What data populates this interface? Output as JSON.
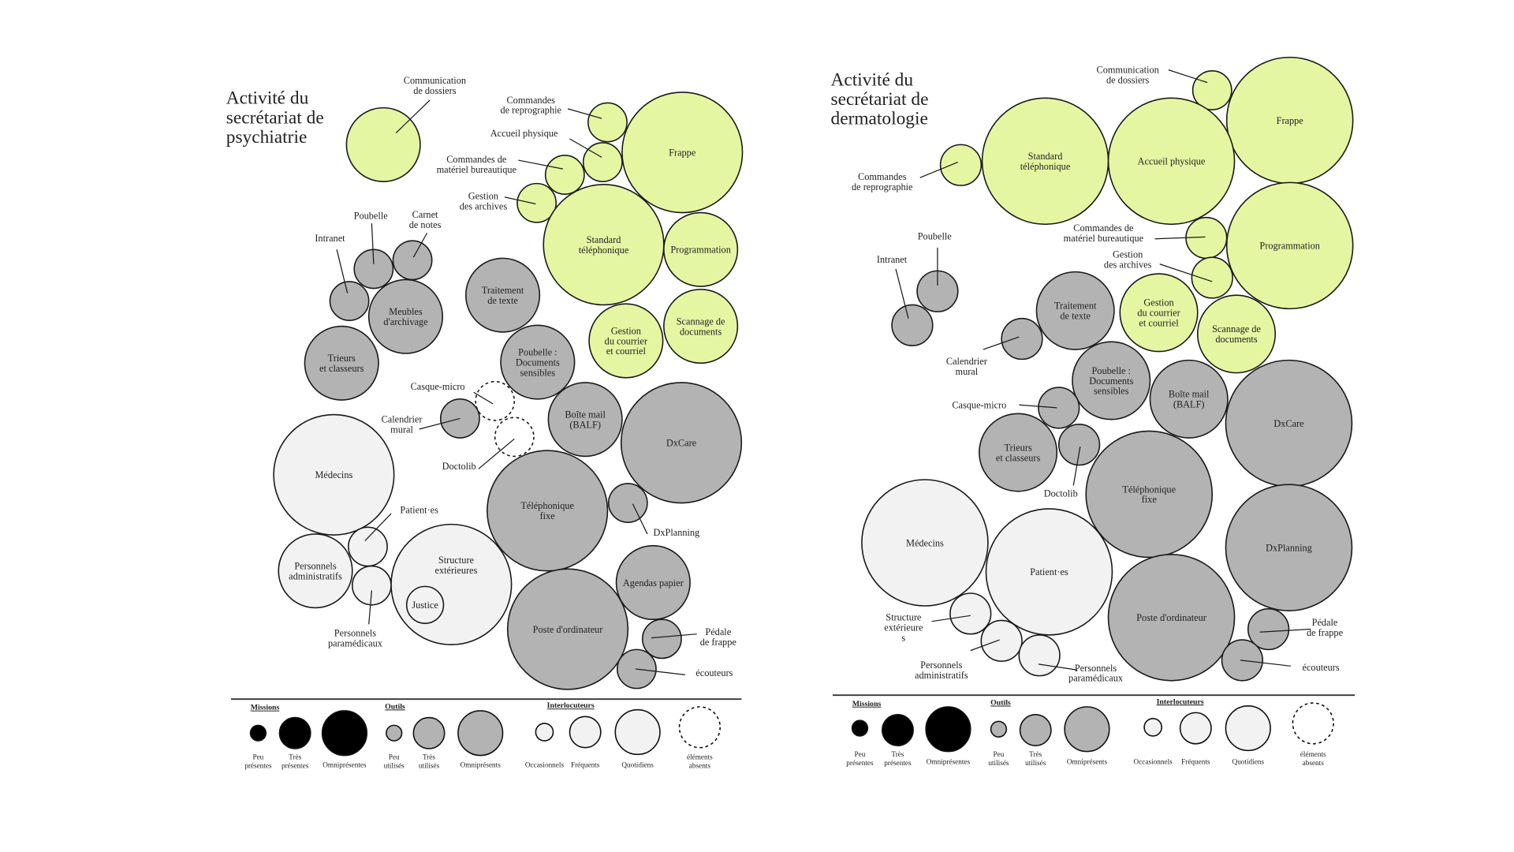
{
  "colors": {
    "mission": "#e4f6a2",
    "tool": "#b3b3b3",
    "interlocutor": "#f2f2f2",
    "stroke": "#1a1a1a"
  },
  "charts": [
    {
      "title": [
        "Activité du",
        "secrétariat de",
        "psychiatrie"
      ],
      "bubbles": [
        {
          "label": [
            "Communication",
            "de dossiers"
          ],
          "category": "mission",
          "level": "high"
        },
        {
          "label": [
            "Commandes",
            "de reprographie"
          ],
          "category": "mission",
          "level": "low"
        },
        {
          "label": [
            "Accueil physique"
          ],
          "category": "mission",
          "level": "low"
        },
        {
          "label": [
            "Commandes de",
            "matériel bureautique"
          ],
          "category": "mission",
          "level": "low"
        },
        {
          "label": [
            "Gestion",
            "des archives"
          ],
          "category": "mission",
          "level": "low"
        },
        {
          "label": [
            "Frappe"
          ],
          "category": "mission",
          "level": "omni"
        },
        {
          "label": [
            "Standard",
            "téléphonique"
          ],
          "category": "mission",
          "level": "omni"
        },
        {
          "label": [
            "Programmation"
          ],
          "category": "mission",
          "level": "high"
        },
        {
          "label": [
            "Gestion",
            "du courrier",
            "et courriel"
          ],
          "category": "mission",
          "level": "high"
        },
        {
          "label": [
            "Scannage de",
            "documents"
          ],
          "category": "mission",
          "level": "high"
        },
        {
          "label": [
            "Intranet"
          ],
          "category": "tool",
          "level": "low"
        },
        {
          "label": [
            "Poubelle"
          ],
          "category": "tool",
          "level": "low"
        },
        {
          "label": [
            "Carnet",
            "de notes"
          ],
          "category": "tool",
          "level": "low"
        },
        {
          "label": [
            "Meubles",
            "d'archivage"
          ],
          "category": "tool",
          "level": "high"
        },
        {
          "label": [
            "Trieurs",
            "et classeurs"
          ],
          "category": "tool",
          "level": "high"
        },
        {
          "label": [
            "Traitement",
            "de texte"
          ],
          "category": "tool",
          "level": "high"
        },
        {
          "label": [
            "Poubelle :",
            "Documents",
            "sensibles"
          ],
          "category": "tool",
          "level": "high"
        },
        {
          "label": [
            "Casque-micro"
          ],
          "category": "tool",
          "level": "low",
          "absent": true
        },
        {
          "label": [
            "Calendrier",
            "mural"
          ],
          "category": "tool",
          "level": "low"
        },
        {
          "label": [
            "Doctolib"
          ],
          "category": "tool",
          "level": "low",
          "absent": true
        },
        {
          "label": [
            "Boîte mail",
            "(BALF)"
          ],
          "category": "tool",
          "level": "high"
        },
        {
          "label": [
            "DxCare"
          ],
          "category": "tool",
          "level": "omni"
        },
        {
          "label": [
            "Téléphonique",
            "fixe"
          ],
          "category": "tool",
          "level": "omni"
        },
        {
          "label": [
            "DxPlanning"
          ],
          "category": "tool",
          "level": "low"
        },
        {
          "label": [
            "Agendas papier"
          ],
          "category": "tool",
          "level": "high"
        },
        {
          "label": [
            "Poste d'ordinateur"
          ],
          "category": "tool",
          "level": "omni"
        },
        {
          "label": [
            "Pédale",
            "de frappe"
          ],
          "category": "tool",
          "level": "low"
        },
        {
          "label": [
            "écouteurs"
          ],
          "category": "tool",
          "level": "low"
        },
        {
          "label": [
            "Médecins"
          ],
          "category": "interlocutor",
          "level": "omni"
        },
        {
          "label": [
            "Patient·es"
          ],
          "category": "interlocutor",
          "level": "low"
        },
        {
          "label": [
            "Personnels",
            "administratifs"
          ],
          "category": "interlocutor",
          "level": "high"
        },
        {
          "label": [
            "Personnels",
            "paramédicaux"
          ],
          "category": "interlocutor",
          "level": "low"
        },
        {
          "label": [
            "Structure",
            "extérieures"
          ],
          "category": "interlocutor",
          "level": "omni"
        },
        {
          "label": [
            "Justice"
          ],
          "category": "interlocutor",
          "level": "low"
        }
      ]
    },
    {
      "title": [
        "Activité du",
        "secrétariat de",
        "dermatologie"
      ],
      "bubbles": [
        {
          "label": [
            "Communication",
            "de dossiers"
          ],
          "category": "mission",
          "level": "low"
        },
        {
          "label": [
            "Frappe"
          ],
          "category": "mission",
          "level": "omni"
        },
        {
          "label": [
            "Standard",
            "téléphonique"
          ],
          "category": "mission",
          "level": "omni"
        },
        {
          "label": [
            "Accueil physique"
          ],
          "category": "mission",
          "level": "omni"
        },
        {
          "label": [
            "Commandes",
            "de reprographie"
          ],
          "category": "mission",
          "level": "low"
        },
        {
          "label": [
            "Programmation"
          ],
          "category": "mission",
          "level": "omni"
        },
        {
          "label": [
            "Commandes de",
            "matériel bureautique"
          ],
          "category": "mission",
          "level": "low"
        },
        {
          "label": [
            "Gestion",
            "des archives"
          ],
          "category": "mission",
          "level": "low"
        },
        {
          "label": [
            "Gestion",
            "du courrier",
            "et courriel"
          ],
          "category": "mission",
          "level": "high"
        },
        {
          "label": [
            "Scannage de",
            "documents"
          ],
          "category": "mission",
          "level": "high"
        },
        {
          "label": [
            "Poubelle"
          ],
          "category": "tool",
          "level": "low"
        },
        {
          "label": [
            "Intranet"
          ],
          "category": "tool",
          "level": "low"
        },
        {
          "label": [
            "Calendrier",
            "mural"
          ],
          "category": "tool",
          "level": "low"
        },
        {
          "label": [
            "Traitement",
            "de texte"
          ],
          "category": "tool",
          "level": "high"
        },
        {
          "label": [
            "Poubelle :",
            "Documents",
            "sensibles"
          ],
          "category": "tool",
          "level": "high"
        },
        {
          "label": [
            "Boîte mail",
            "(BALF)"
          ],
          "category": "tool",
          "level": "high"
        },
        {
          "label": [
            "DxCare"
          ],
          "category": "tool",
          "level": "omni"
        },
        {
          "label": [
            "Casque-micro"
          ],
          "category": "tool",
          "level": "low"
        },
        {
          "label": [
            "Trieurs",
            "et classeurs"
          ],
          "category": "tool",
          "level": "high"
        },
        {
          "label": [
            "Doctolib"
          ],
          "category": "tool",
          "level": "low"
        },
        {
          "label": [
            "Téléphonique",
            "fixe"
          ],
          "category": "tool",
          "level": "omni"
        },
        {
          "label": [
            "DxPlanning"
          ],
          "category": "tool",
          "level": "omni"
        },
        {
          "label": [
            "Poste d'ordinateur"
          ],
          "category": "tool",
          "level": "omni"
        },
        {
          "label": [
            "Pédale",
            "de frappe"
          ],
          "category": "tool",
          "level": "low"
        },
        {
          "label": [
            "écouteurs"
          ],
          "category": "tool",
          "level": "low"
        },
        {
          "label": [
            "Médecins"
          ],
          "category": "interlocutor",
          "level": "omni"
        },
        {
          "label": [
            "Patient·es"
          ],
          "category": "interlocutor",
          "level": "omni"
        },
        {
          "label": [
            "Structure",
            "extérieure",
            "s"
          ],
          "category": "interlocutor",
          "level": "low"
        },
        {
          "label": [
            "Personnels",
            "administratifs"
          ],
          "category": "interlocutor",
          "level": "low"
        },
        {
          "label": [
            "Personnels",
            "paramédicaux"
          ],
          "category": "interlocutor",
          "level": "low"
        }
      ]
    }
  ],
  "legend": {
    "headers": [
      "Missions",
      "Outils",
      "Interlocuteurs"
    ],
    "items": [
      {
        "label": [
          "Peu",
          "présentes"
        ],
        "category": "mission"
      },
      {
        "label": [
          "Très",
          "présentes"
        ],
        "category": "mission"
      },
      {
        "label": [
          "Omniprésentes"
        ],
        "category": "mission"
      },
      {
        "label": [
          "Peu",
          "utilisés"
        ],
        "category": "tool"
      },
      {
        "label": [
          "Très",
          "utilisés"
        ],
        "category": "tool"
      },
      {
        "label": [
          "Omniprésents"
        ],
        "category": "tool"
      },
      {
        "label": [
          "Occasionnels"
        ],
        "category": "interlocutor"
      },
      {
        "label": [
          "Fréquents"
        ],
        "category": "interlocutor"
      },
      {
        "label": [
          "Quotidiens"
        ],
        "category": "interlocutor"
      },
      {
        "label": [
          "éléments",
          "absents"
        ],
        "category": "absent"
      }
    ]
  }
}
